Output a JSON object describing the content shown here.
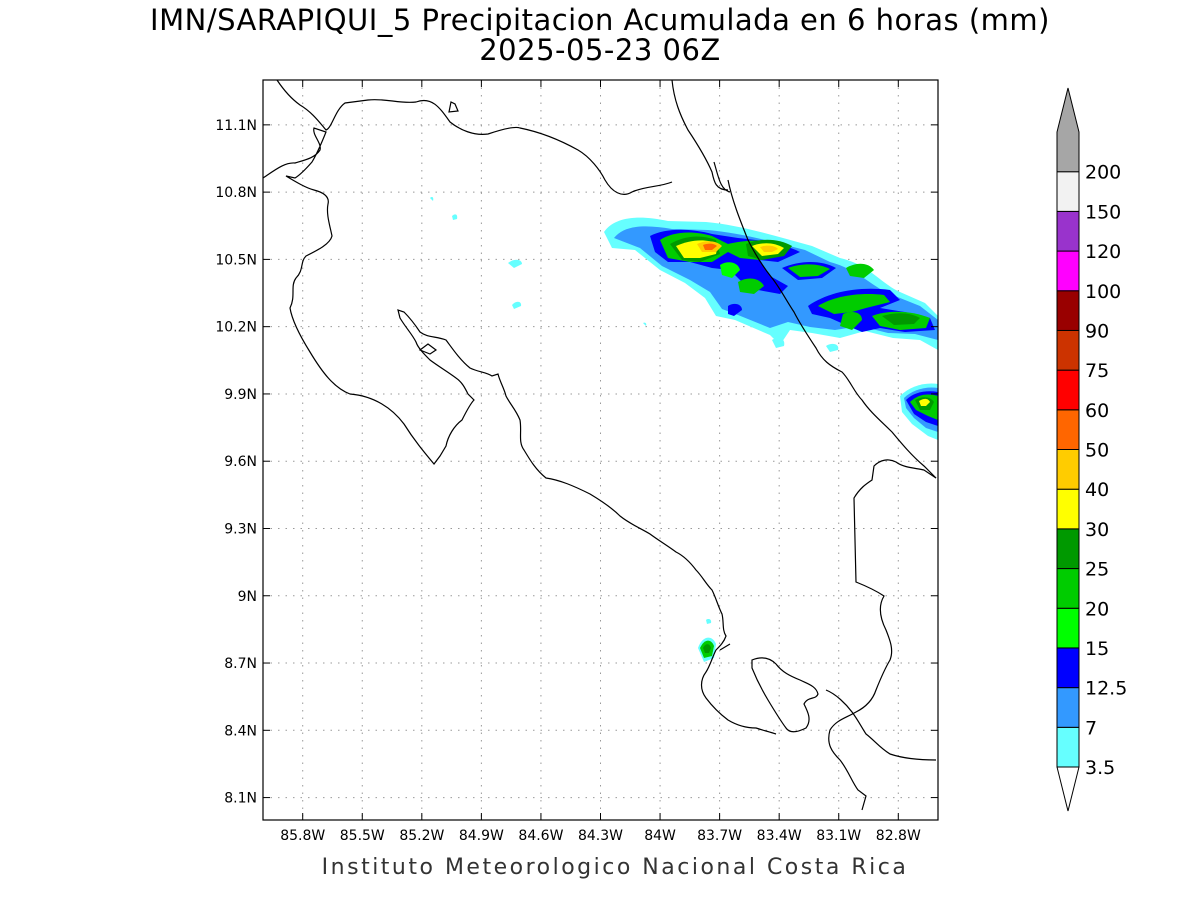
{
  "title": {
    "line1": "IMN/SARAPIQUI_5 Precipitacion Acumulada en 6 horas (mm)",
    "line2": "2025-05-23 06Z"
  },
  "footer": "Instituto Meteorologico Nacional Costa Rica",
  "map": {
    "lon_range": [
      -86.0,
      -82.6
    ],
    "lat_range": [
      8.0,
      11.3
    ],
    "lon_ticks": [
      {
        "value": -85.8,
        "label": "85.8W"
      },
      {
        "value": -85.5,
        "label": "85.5W"
      },
      {
        "value": -85.2,
        "label": "85.2W"
      },
      {
        "value": -84.9,
        "label": "84.9W"
      },
      {
        "value": -84.6,
        "label": "84.6W"
      },
      {
        "value": -84.3,
        "label": "84.3W"
      },
      {
        "value": -84.0,
        "label": "84W"
      },
      {
        "value": -83.7,
        "label": "83.7W"
      },
      {
        "value": -83.4,
        "label": "83.4W"
      },
      {
        "value": -83.1,
        "label": "83.1W"
      },
      {
        "value": -82.8,
        "label": "82.8W"
      }
    ],
    "lat_ticks": [
      {
        "value": 11.1,
        "label": "11.1N"
      },
      {
        "value": 10.8,
        "label": "10.8N"
      },
      {
        "value": 10.5,
        "label": "10.5N"
      },
      {
        "value": 10.2,
        "label": "10.2N"
      },
      {
        "value": 9.9,
        "label": "9.9N"
      },
      {
        "value": 9.6,
        "label": "9.6N"
      },
      {
        "value": 9.3,
        "label": "9.3N"
      },
      {
        "value": 9.0,
        "label": "9N"
      },
      {
        "value": 8.7,
        "label": "8.7N"
      },
      {
        "value": 8.4,
        "label": "8.4N"
      },
      {
        "value": 8.1,
        "label": "8.1N"
      }
    ],
    "grid": true
  },
  "colorbar": {
    "levels": [
      {
        "label": "3.5",
        "color": "#66ffff"
      },
      {
        "label": "7",
        "color": "#3399ff"
      },
      {
        "label": "12.5",
        "color": "#0000ff"
      },
      {
        "label": "15",
        "color": "#00ff00"
      },
      {
        "label": "20",
        "color": "#00cc00"
      },
      {
        "label": "25",
        "color": "#009900"
      },
      {
        "label": "30",
        "color": "#ffff00"
      },
      {
        "label": "40",
        "color": "#ffcc00"
      },
      {
        "label": "50",
        "color": "#ff6600"
      },
      {
        "label": "60",
        "color": "#ff0000"
      },
      {
        "label": "75",
        "color": "#cc3300"
      },
      {
        "label": "90",
        "color": "#990000"
      },
      {
        "label": "100",
        "color": "#ff00ff"
      },
      {
        "label": "120",
        "color": "#9933cc"
      },
      {
        "label": "150",
        "color": "#f2f2f2"
      },
      {
        "label": "200",
        "color": "#a6a6a6"
      }
    ]
  }
}
